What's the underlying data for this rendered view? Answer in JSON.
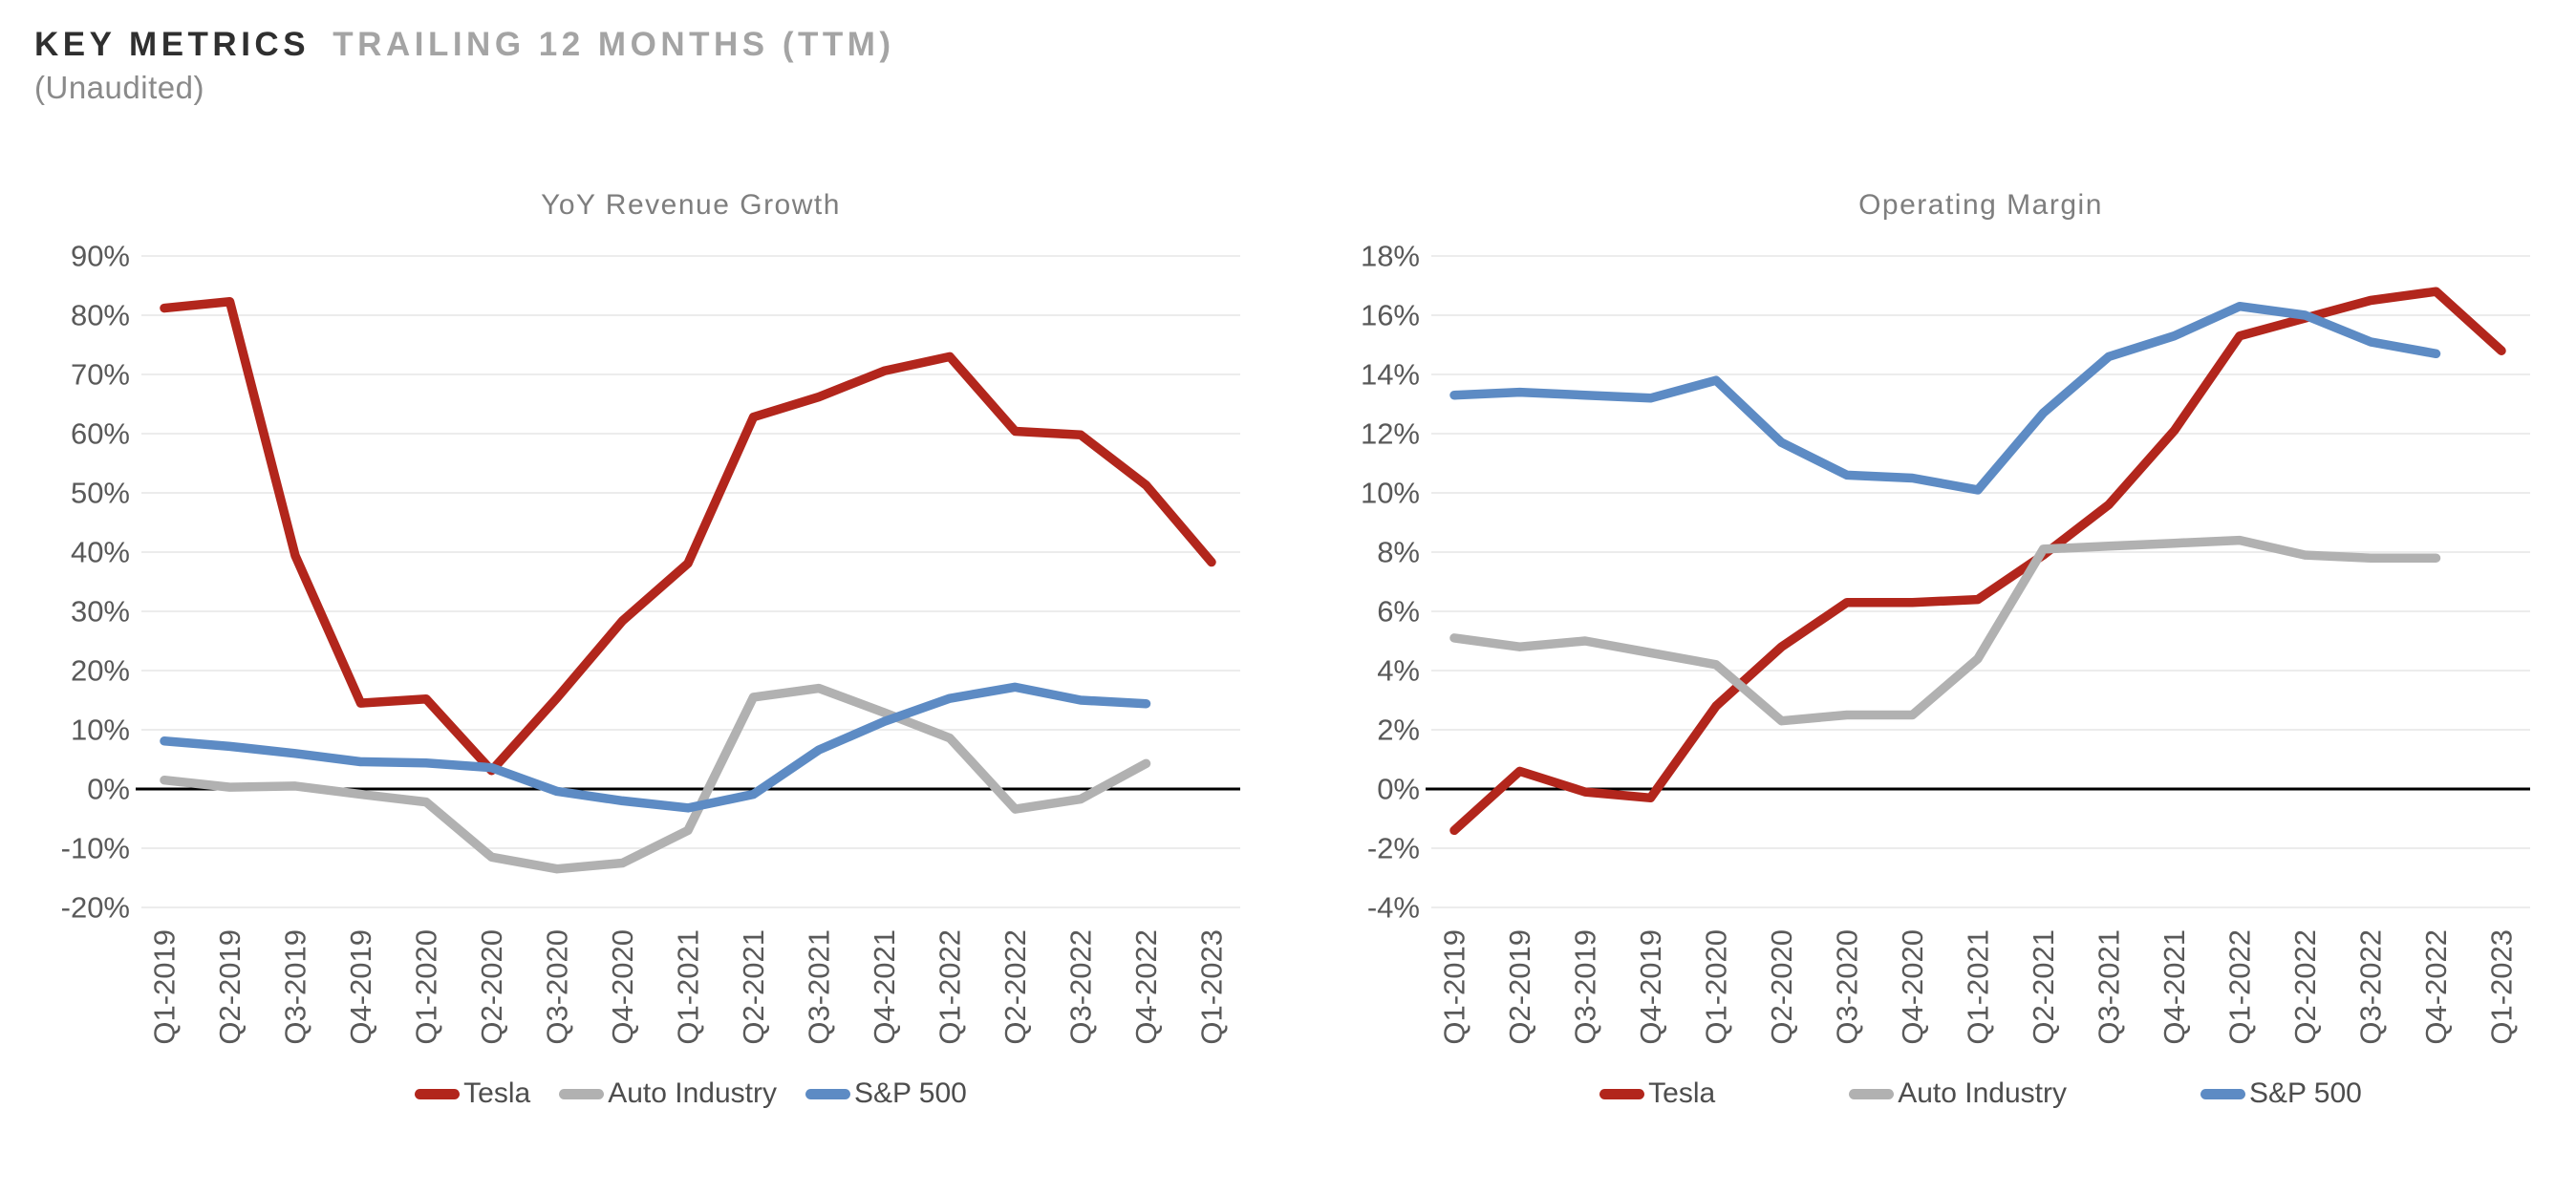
{
  "header": {
    "title_primary": "KEY METRICS",
    "title_secondary": "TRAILING 12 MONTHS (TTM)",
    "subtitle": "(Unaudited)"
  },
  "colors": {
    "tesla": "#B2261C",
    "auto_industry": "#B1B1B1",
    "sp500": "#5D8BC4",
    "grid": "#E6E6E6",
    "zero_line": "#000000",
    "axis_text": "#595959",
    "title_text": "#7E7E7E"
  },
  "chart_data": [
    {
      "type": "line",
      "title": "YoY Revenue Growth",
      "ylabel": "",
      "xlabel": "",
      "ylim": [
        -20,
        90
      ],
      "ytick_step": 10,
      "ytick_suffix": "%",
      "grid": true,
      "legend_position": "bottom",
      "categories": [
        "Q1-2019",
        "Q2-2019",
        "Q3-2019",
        "Q4-2019",
        "Q1-2020",
        "Q2-2020",
        "Q3-2020",
        "Q4-2020",
        "Q1-2021",
        "Q2-2021",
        "Q3-2021",
        "Q4-2021",
        "Q1-2022",
        "Q2-2022",
        "Q3-2022",
        "Q4-2022",
        "Q1-2023"
      ],
      "series": [
        {
          "name": "Tesla",
          "color_key": "tesla",
          "values": [
            81.2,
            82.3,
            39.4,
            14.5,
            15.2,
            3.1,
            15.4,
            28.4,
            38.1,
            62.8,
            66.2,
            70.6,
            73.0,
            60.4,
            59.8,
            51.3,
            38.3
          ]
        },
        {
          "name": "Auto Industry",
          "color_key": "auto_industry",
          "values": [
            1.5,
            0.3,
            0.5,
            -0.9,
            -2.2,
            -11.5,
            -13.5,
            -12.5,
            -7.0,
            15.5,
            17.0,
            12.9,
            8.6,
            -3.4,
            -1.7,
            4.3
          ]
        },
        {
          "name": "S&P 500",
          "color_key": "sp500",
          "values": [
            8.1,
            7.2,
            6.0,
            4.6,
            4.4,
            3.6,
            -0.4,
            -2.0,
            -3.2,
            -0.9,
            6.6,
            11.4,
            15.3,
            17.2,
            15.0,
            14.4
          ]
        }
      ]
    },
    {
      "type": "line",
      "title": "Operating Margin",
      "ylabel": "",
      "xlabel": "",
      "ylim": [
        -4,
        18
      ],
      "ytick_step": 2,
      "ytick_suffix": "%",
      "grid": true,
      "legend_position": "bottom",
      "categories": [
        "Q1-2019",
        "Q2-2019",
        "Q3-2019",
        "Q4-2019",
        "Q1-2020",
        "Q2-2020",
        "Q3-2020",
        "Q4-2020",
        "Q1-2021",
        "Q2-2021",
        "Q3-2021",
        "Q4-2021",
        "Q1-2022",
        "Q2-2022",
        "Q3-2022",
        "Q4-2022",
        "Q1-2023"
      ],
      "series": [
        {
          "name": "Tesla",
          "color_key": "tesla",
          "values": [
            -1.4,
            0.6,
            -0.1,
            -0.3,
            2.8,
            4.8,
            6.3,
            6.3,
            6.4,
            7.9,
            9.6,
            12.1,
            15.3,
            15.9,
            16.5,
            16.8,
            14.8
          ]
        },
        {
          "name": "Auto Industry",
          "color_key": "auto_industry",
          "values": [
            5.1,
            4.8,
            5.0,
            4.6,
            4.2,
            2.3,
            2.5,
            2.5,
            4.4,
            8.1,
            8.2,
            8.3,
            8.4,
            7.9,
            7.8,
            7.8
          ]
        },
        {
          "name": "S&P 500",
          "color_key": "sp500",
          "values": [
            13.3,
            13.4,
            13.3,
            13.2,
            13.8,
            11.7,
            10.6,
            10.5,
            10.1,
            12.7,
            14.6,
            15.3,
            16.3,
            16.0,
            15.1,
            14.7
          ]
        }
      ]
    }
  ]
}
